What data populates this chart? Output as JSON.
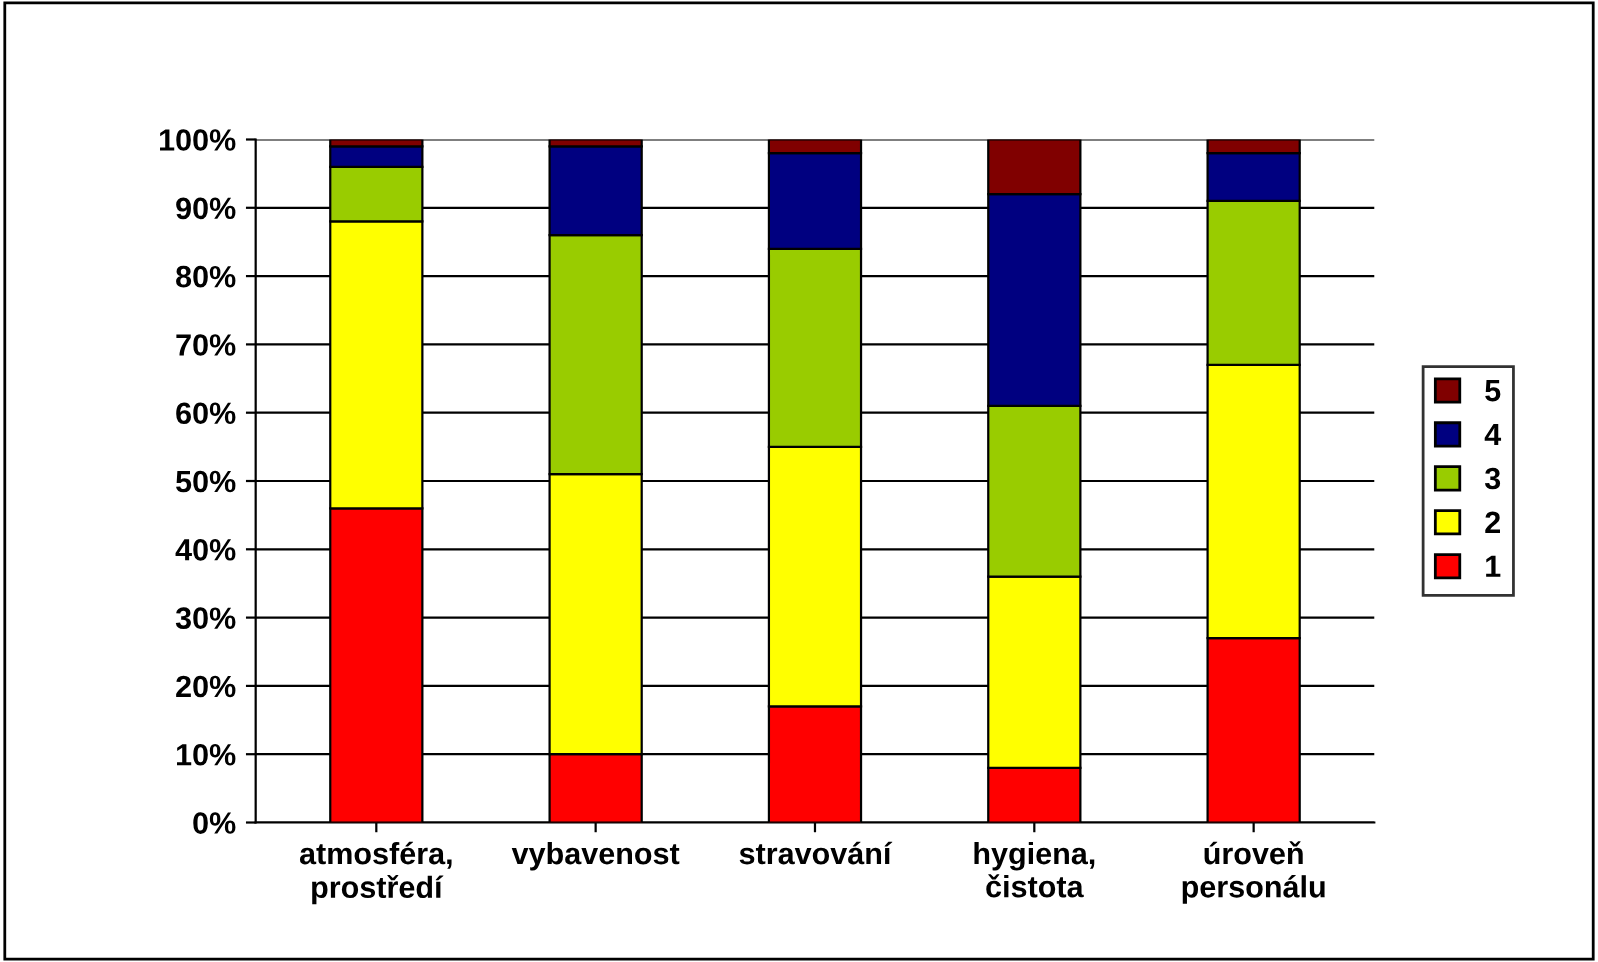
{
  "chart_data": {
    "type": "bar",
    "stacked": true,
    "categories": [
      "atmosféra,\nprostředí",
      "vybavenost",
      "stravování",
      "hygiena,\nčistota",
      "úroveň\npersonálu"
    ],
    "series": [
      {
        "name": "1",
        "color": "#ff0000",
        "values": [
          46,
          10,
          17,
          8,
          27
        ]
      },
      {
        "name": "2",
        "color": "#ffff00",
        "values": [
          42,
          41,
          38,
          28,
          40
        ]
      },
      {
        "name": "3",
        "color": "#99cc00",
        "values": [
          8,
          35,
          29,
          25,
          24
        ]
      },
      {
        "name": "4",
        "color": "#000080",
        "values": [
          3,
          13,
          14,
          31,
          7
        ]
      },
      {
        "name": "5",
        "color": "#800000",
        "values": [
          1,
          1,
          2,
          8,
          2
        ]
      }
    ],
    "ylim": [
      0,
      100
    ],
    "yticks": [
      {
        "value": 0,
        "label": "0%"
      },
      {
        "value": 10,
        "label": "10%"
      },
      {
        "value": 20,
        "label": "20%"
      },
      {
        "value": 30,
        "label": "30%"
      },
      {
        "value": 40,
        "label": "40%"
      },
      {
        "value": 50,
        "label": "50%"
      },
      {
        "value": 60,
        "label": "60%"
      },
      {
        "value": 70,
        "label": "70%"
      },
      {
        "value": 80,
        "label": "80%"
      },
      {
        "value": 90,
        "label": "90%"
      },
      {
        "value": 100,
        "label": "100%"
      }
    ],
    "grid": "y",
    "legend": "right"
  }
}
